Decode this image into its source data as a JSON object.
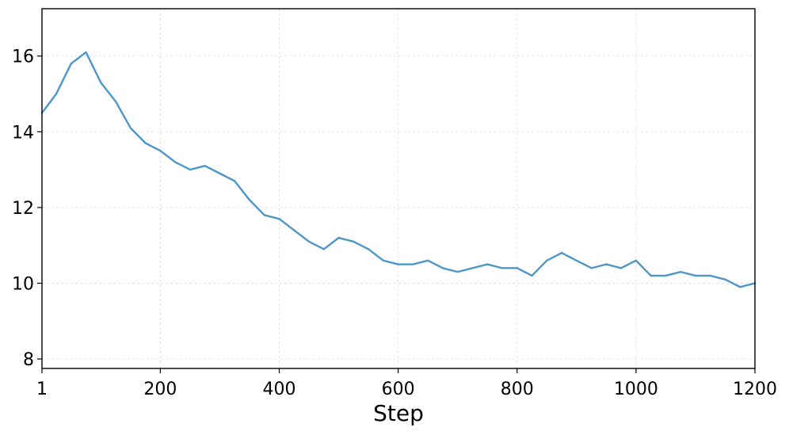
{
  "chart_data": {
    "type": "line",
    "title": "",
    "xlabel": "Step",
    "ylabel": "",
    "xlim": [
      1,
      1200
    ],
    "ylim": [
      7.75,
      17.25
    ],
    "grid": true,
    "legend": "none",
    "line_color": "#4c96c8",
    "x_ticks": [
      1,
      200,
      400,
      600,
      800,
      1000,
      1200
    ],
    "x_tick_labels": [
      "1",
      "200",
      "400",
      "600",
      "800",
      "1000",
      "1200"
    ],
    "y_ticks": [
      8,
      10,
      12,
      14,
      16
    ],
    "y_tick_labels": [
      "8",
      "10",
      "12",
      "14",
      "16"
    ],
    "series": [
      {
        "x": [
          1,
          25,
          50,
          75,
          100,
          125,
          150,
          175,
          200,
          225,
          250,
          275,
          300,
          325,
          350,
          375,
          400,
          425,
          450,
          475,
          500,
          525,
          550,
          575,
          600,
          625,
          650,
          675,
          700,
          725,
          750,
          775,
          800,
          825,
          850,
          875,
          900,
          925,
          950,
          975,
          1000,
          1025,
          1050,
          1075,
          1100,
          1125,
          1150,
          1175,
          1200
        ],
        "values": [
          14.5,
          15.0,
          15.8,
          16.1,
          15.3,
          14.8,
          14.1,
          13.7,
          13.5,
          13.2,
          13.0,
          13.1,
          12.9,
          12.7,
          12.2,
          11.8,
          11.7,
          11.4,
          11.1,
          10.9,
          11.2,
          11.1,
          10.9,
          10.6,
          10.5,
          10.5,
          10.6,
          10.4,
          10.3,
          10.4,
          10.5,
          10.4,
          10.4,
          10.2,
          10.6,
          10.8,
          10.6,
          10.4,
          10.5,
          10.4,
          10.6,
          10.2,
          10.2,
          10.3,
          10.2,
          10.2,
          10.1,
          9.9,
          10.0
        ]
      }
    ]
  }
}
